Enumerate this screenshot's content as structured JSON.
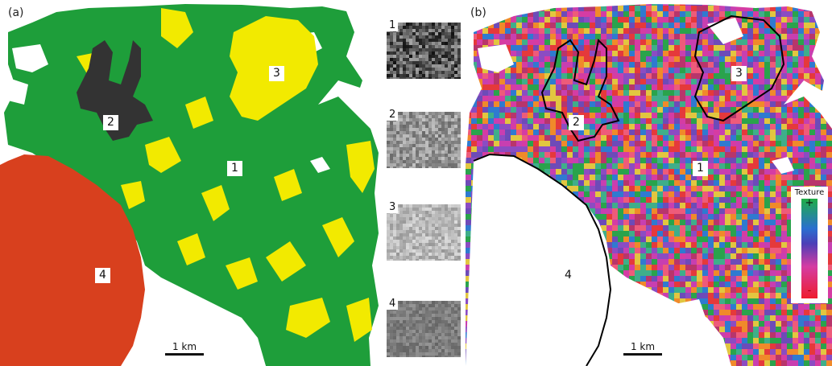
{
  "panel_a": {
    "label": "(a)",
    "regions": [
      {
        "id": "region-1",
        "text": "1",
        "color": "#1e9e3a"
      },
      {
        "id": "region-2",
        "text": "2",
        "color": "#333333"
      },
      {
        "id": "region-3",
        "text": "3",
        "color": "#f2ea00"
      },
      {
        "id": "region-4",
        "text": "4",
        "color": "#d8401e"
      }
    ],
    "scalebar": "1 km"
  },
  "thumbnails": [
    {
      "label": "1",
      "tone": "#5a5a5a"
    },
    {
      "label": "2",
      "tone": "#a9a9a9"
    },
    {
      "label": "3",
      "tone": "#cfcfcf"
    },
    {
      "label": "4",
      "tone": "#8a8a8a"
    }
  ],
  "panel_b": {
    "label": "(b)",
    "regions": [
      {
        "id": "region-1",
        "text": "1"
      },
      {
        "id": "region-2",
        "text": "2"
      },
      {
        "id": "region-3",
        "text": "3"
      },
      {
        "id": "region-4",
        "text": "4"
      }
    ],
    "scalebar": "1 km",
    "legend": {
      "title": "Texture",
      "high": "+",
      "low": "-"
    }
  }
}
